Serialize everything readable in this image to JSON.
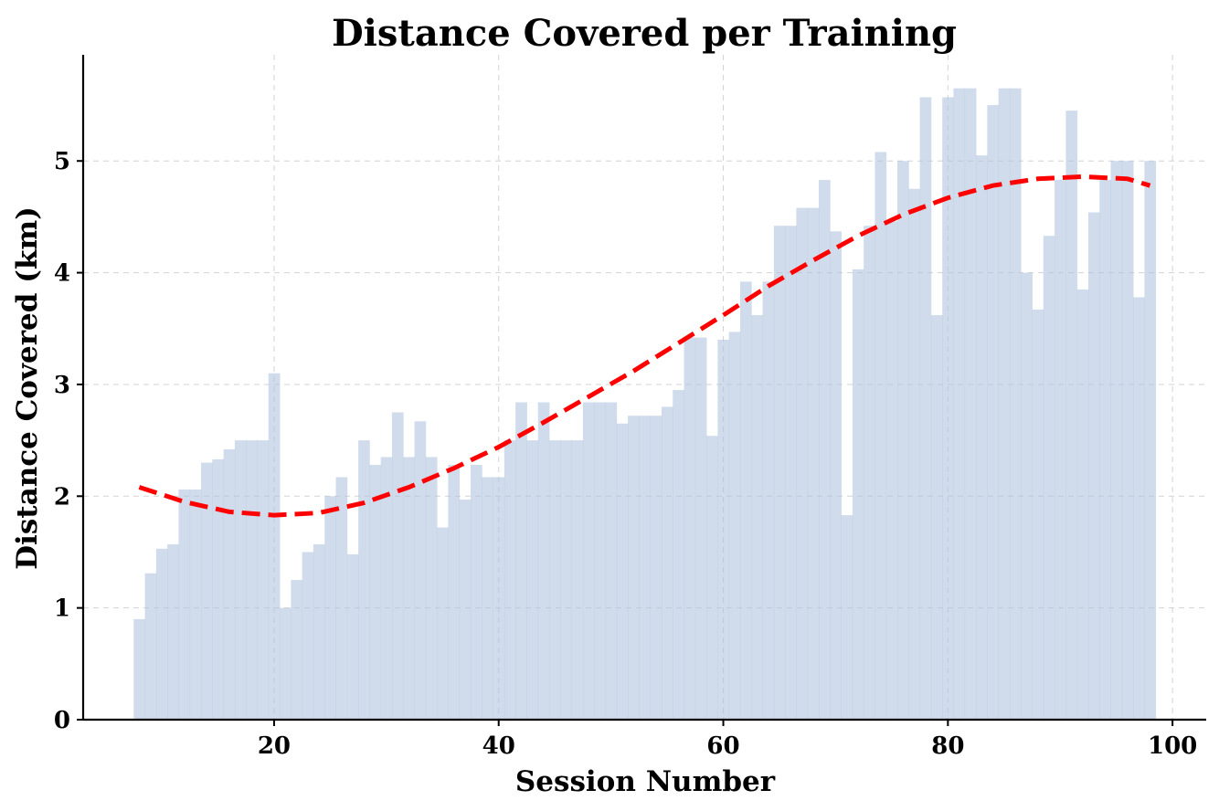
{
  "chart_data": {
    "type": "bar",
    "title": "Distance Covered per Training",
    "xlabel": "Session Number",
    "ylabel": "Distance Covered (km)",
    "xlim": [
      3,
      103
    ],
    "ylim": [
      0,
      5.95
    ],
    "xticks": [
      20,
      40,
      60,
      80,
      100
    ],
    "yticks": [
      0,
      1,
      2,
      3,
      4,
      5
    ],
    "grid": true,
    "colors": {
      "bars": "#b0c4de",
      "trend": "#ff0000"
    },
    "series": [
      {
        "type": "bar",
        "x": [
          8,
          9,
          10,
          11,
          12,
          13,
          14,
          15,
          16,
          17,
          18,
          19,
          20,
          21,
          22,
          23,
          24,
          25,
          26,
          27,
          28,
          29,
          30,
          31,
          32,
          33,
          34,
          35,
          36,
          37,
          38,
          39,
          40,
          41,
          42,
          43,
          44,
          45,
          46,
          47,
          48,
          49,
          50,
          51,
          52,
          53,
          54,
          55,
          56,
          57,
          58,
          59,
          60,
          61,
          62,
          63,
          64,
          65,
          66,
          67,
          68,
          69,
          70,
          71,
          72,
          73,
          74,
          75,
          76,
          77,
          78,
          79,
          80,
          81,
          82,
          83,
          84,
          85,
          86,
          87,
          88,
          89,
          90,
          91,
          92,
          93,
          94,
          95,
          96,
          97,
          98
        ],
        "values": [
          0.9,
          1.31,
          1.53,
          1.57,
          2.06,
          2.06,
          2.3,
          2.33,
          2.42,
          2.5,
          2.5,
          2.5,
          3.1,
          1.0,
          1.25,
          1.5,
          1.57,
          2.0,
          2.17,
          1.48,
          2.5,
          2.28,
          2.35,
          2.75,
          2.35,
          2.67,
          2.35,
          1.72,
          2.28,
          1.97,
          2.28,
          2.17,
          2.17,
          2.5,
          2.84,
          2.5,
          2.84,
          2.5,
          2.5,
          2.5,
          2.84,
          2.84,
          2.84,
          2.65,
          2.72,
          2.72,
          2.72,
          2.8,
          2.95,
          3.42,
          3.42,
          2.54,
          3.4,
          3.47,
          3.92,
          3.62,
          3.92,
          4.42,
          4.42,
          4.58,
          4.58,
          4.83,
          4.37,
          1.83,
          4.03,
          4.42,
          5.08,
          4.46,
          5.0,
          4.75,
          5.57,
          3.62,
          5.57,
          5.65,
          5.65,
          5.05,
          5.5,
          5.65,
          5.65,
          4.0,
          3.67,
          4.33,
          4.83,
          5.45,
          3.85,
          4.54,
          4.83,
          5.0,
          5.0,
          3.78,
          5.0
        ]
      },
      {
        "type": "line",
        "style": "dashed",
        "x": [
          8,
          12,
          16,
          20,
          24,
          28,
          32,
          36,
          40,
          44,
          48,
          52,
          56,
          60,
          64,
          68,
          72,
          76,
          80,
          84,
          88,
          92,
          96,
          98
        ],
        "values": [
          2.08,
          1.95,
          1.86,
          1.83,
          1.85,
          1.94,
          2.08,
          2.25,
          2.44,
          2.66,
          2.89,
          3.12,
          3.37,
          3.62,
          3.88,
          4.11,
          4.33,
          4.52,
          4.67,
          4.78,
          4.84,
          4.86,
          4.84,
          4.78
        ]
      }
    ]
  }
}
